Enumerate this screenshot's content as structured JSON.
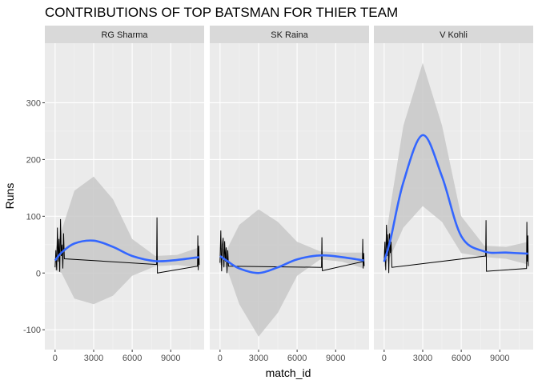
{
  "chart_data": {
    "type": "line",
    "title": "CONTRIBUTIONS OF TOP BATSMAN FOR THIER TEAM",
    "xlabel": "match_id",
    "ylabel": "Runs",
    "xlim": [
      -800,
      11600
    ],
    "ylim": [
      -135,
      405
    ],
    "x_ticks": [
      0,
      3000,
      6000,
      9000
    ],
    "x_tick_labels": [
      "0",
      "3000",
      "6000",
      "9000"
    ],
    "y_ticks": [
      -100,
      0,
      100,
      200,
      300
    ],
    "y_tick_labels": [
      "-100",
      "0",
      "100",
      "200",
      "300"
    ],
    "grid": true,
    "colors": {
      "panel_bg": "#ebebeb",
      "strip_bg": "#d9d9d9",
      "grid_major": "#ffffff",
      "line": "#000000",
      "smooth": "#3366ff",
      "ribbon": "#c8c8c8"
    },
    "facets": [
      {
        "name": "RG Sharma",
        "runs": [
          {
            "x": 0,
            "y": 10
          },
          {
            "x": 60,
            "y": 40
          },
          {
            "x": 120,
            "y": 5
          },
          {
            "x": 180,
            "y": 80
          },
          {
            "x": 240,
            "y": 20
          },
          {
            "x": 300,
            "y": 60
          },
          {
            "x": 360,
            "y": 2
          },
          {
            "x": 420,
            "y": 95
          },
          {
            "x": 480,
            "y": 30
          },
          {
            "x": 540,
            "y": 50
          },
          {
            "x": 600,
            "y": 8
          },
          {
            "x": 660,
            "y": 70
          },
          {
            "x": 720,
            "y": 25
          },
          {
            "x": 7900,
            "y": 15
          },
          {
            "x": 7930,
            "y": 98
          },
          {
            "x": 7960,
            "y": 0
          },
          {
            "x": 11080,
            "y": 12
          },
          {
            "x": 11110,
            "y": 66
          },
          {
            "x": 11140,
            "y": 5
          },
          {
            "x": 11180,
            "y": 48
          },
          {
            "x": 11220,
            "y": 14
          }
        ],
        "smooth": [
          {
            "x": 0,
            "y": 22,
            "lo": 5,
            "hi": 40
          },
          {
            "x": 500,
            "y": 36,
            "lo": 0,
            "hi": 75
          },
          {
            "x": 1500,
            "y": 52,
            "lo": -45,
            "hi": 145
          },
          {
            "x": 3000,
            "y": 57,
            "lo": -55,
            "hi": 170
          },
          {
            "x": 4500,
            "y": 46,
            "lo": -40,
            "hi": 130
          },
          {
            "x": 6000,
            "y": 30,
            "lo": -5,
            "hi": 60
          },
          {
            "x": 7800,
            "y": 21,
            "lo": 12,
            "hi": 30
          },
          {
            "x": 9500,
            "y": 23,
            "lo": 14,
            "hi": 32
          },
          {
            "x": 11200,
            "y": 28,
            "lo": 10,
            "hi": 45
          }
        ]
      },
      {
        "name": "SK Raina",
        "runs": [
          {
            "x": 0,
            "y": 18
          },
          {
            "x": 60,
            "y": 75
          },
          {
            "x": 120,
            "y": 3
          },
          {
            "x": 180,
            "y": 48
          },
          {
            "x": 240,
            "y": 62
          },
          {
            "x": 300,
            "y": 10
          },
          {
            "x": 360,
            "y": 56
          },
          {
            "x": 420,
            "y": 20
          },
          {
            "x": 480,
            "y": 45
          },
          {
            "x": 540,
            "y": 0
          },
          {
            "x": 600,
            "y": 40
          },
          {
            "x": 660,
            "y": 12
          },
          {
            "x": 7900,
            "y": 10
          },
          {
            "x": 7930,
            "y": 63
          },
          {
            "x": 7960,
            "y": 4
          },
          {
            "x": 11080,
            "y": 20
          },
          {
            "x": 11110,
            "y": 60
          },
          {
            "x": 11140,
            "y": 8
          },
          {
            "x": 11180,
            "y": 35
          },
          {
            "x": 11220,
            "y": 12
          }
        ],
        "smooth": [
          {
            "x": 0,
            "y": 30,
            "lo": 15,
            "hi": 45
          },
          {
            "x": 500,
            "y": 22,
            "lo": 10,
            "hi": 40
          },
          {
            "x": 1500,
            "y": 8,
            "lo": -55,
            "hi": 85
          },
          {
            "x": 3000,
            "y": 0,
            "lo": -112,
            "hi": 112
          },
          {
            "x": 4500,
            "y": 10,
            "lo": -70,
            "hi": 90
          },
          {
            "x": 6000,
            "y": 24,
            "lo": -5,
            "hi": 55
          },
          {
            "x": 7800,
            "y": 31,
            "lo": 24,
            "hi": 38
          },
          {
            "x": 9500,
            "y": 28,
            "lo": 20,
            "hi": 36
          },
          {
            "x": 11200,
            "y": 22,
            "lo": 8,
            "hi": 36
          }
        ]
      },
      {
        "name": "V Kohli",
        "runs": [
          {
            "x": 0,
            "y": 20
          },
          {
            "x": 60,
            "y": 55
          },
          {
            "x": 120,
            "y": 5
          },
          {
            "x": 180,
            "y": 85
          },
          {
            "x": 240,
            "y": 30
          },
          {
            "x": 300,
            "y": 68
          },
          {
            "x": 360,
            "y": 0
          },
          {
            "x": 420,
            "y": 70
          },
          {
            "x": 480,
            "y": 35
          },
          {
            "x": 540,
            "y": 55
          },
          {
            "x": 600,
            "y": 10
          },
          {
            "x": 7900,
            "y": 30
          },
          {
            "x": 7930,
            "y": 93
          },
          {
            "x": 7960,
            "y": 3
          },
          {
            "x": 11080,
            "y": 8
          },
          {
            "x": 11110,
            "y": 90
          },
          {
            "x": 11140,
            "y": 20
          },
          {
            "x": 11180,
            "y": 66
          },
          {
            "x": 11220,
            "y": 12
          }
        ],
        "smooth": [
          {
            "x": 0,
            "y": 20,
            "lo": 10,
            "hi": 40
          },
          {
            "x": 500,
            "y": 60,
            "lo": 30,
            "hi": 120
          },
          {
            "x": 1500,
            "y": 160,
            "lo": 80,
            "hi": 260
          },
          {
            "x": 3000,
            "y": 243,
            "lo": 118,
            "hi": 370
          },
          {
            "x": 4500,
            "y": 170,
            "lo": 90,
            "hi": 260
          },
          {
            "x": 6000,
            "y": 65,
            "lo": 35,
            "hi": 100
          },
          {
            "x": 7800,
            "y": 38,
            "lo": 28,
            "hi": 48
          },
          {
            "x": 9500,
            "y": 36,
            "lo": 25,
            "hi": 46
          },
          {
            "x": 11200,
            "y": 34,
            "lo": 15,
            "hi": 55
          }
        ]
      }
    ]
  }
}
